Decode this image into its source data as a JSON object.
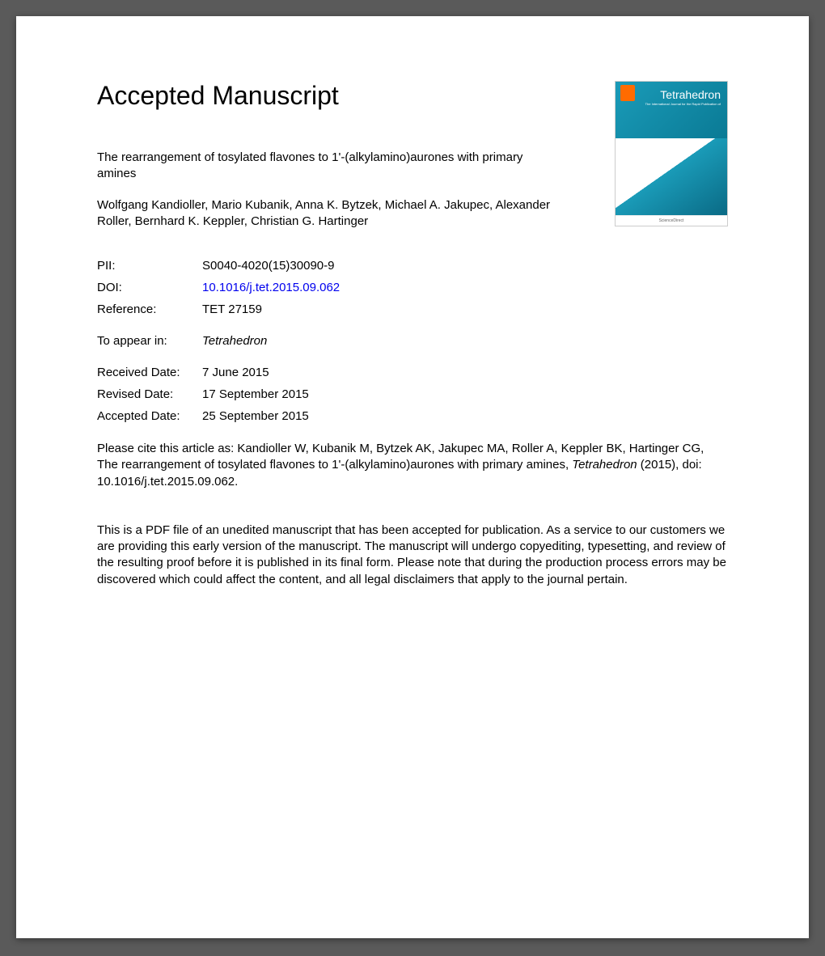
{
  "heading": "Accepted Manuscript",
  "cover": {
    "journal_title": "Tetrahedron",
    "subtitle": "The International Journal for the Rapid Publication of",
    "footer": "ScienceDirect"
  },
  "article_title": "The rearrangement of tosylated flavones to 1'-(alkylamino)aurones with primary amines",
  "authors": "Wolfgang Kandioller, Mario Kubanik, Anna K. Bytzek, Michael A. Jakupec, Alexander Roller, Bernhard K. Keppler, Christian G. Hartinger",
  "meta": {
    "pii": {
      "label": "PII:",
      "value": "S0040-4020(15)30090-9"
    },
    "doi": {
      "label": "DOI:",
      "value": "10.1016/j.tet.2015.09.062"
    },
    "reference": {
      "label": "Reference:",
      "value": "TET 27159"
    },
    "to_appear": {
      "label": "To appear in:",
      "value": "Tetrahedron"
    },
    "received": {
      "label": "Received Date:",
      "value": "7 June 2015"
    },
    "revised": {
      "label": "Revised Date:",
      "value": "17 September 2015"
    },
    "accepted": {
      "label": "Accepted Date:",
      "value": "25 September 2015"
    }
  },
  "citation_prefix": "Please cite this article as: Kandioller W, Kubanik M, Bytzek AK, Jakupec MA, Roller A, Keppler BK, Hartinger CG, The rearrangement of tosylated flavones to 1'-(alkylamino)aurones with primary amines, ",
  "citation_journal": "Tetrahedron",
  "citation_suffix": " (2015), doi: 10.1016/j.tet.2015.09.062.",
  "disclaimer": "This is a PDF file of an unedited manuscript that has been accepted for publication. As a service to our customers we are providing this early version of the manuscript. The manuscript will undergo copyediting, typesetting, and review of the resulting proof before it is published in its final form. Please note that during the production process errors may be discovered which could affect the content, and all legal disclaimers that apply to the journal pertain.",
  "colors": {
    "page_bg": "#ffffff",
    "outer_bg": "#5a5a5a",
    "text": "#000000",
    "link": "#0000ee",
    "cover_teal_light": "#1a9bb8",
    "cover_teal_dark": "#0a7a95",
    "cover_orange": "#ff6b00"
  },
  "typography": {
    "heading_fontsize": 32,
    "body_fontsize": 15,
    "font_family": "Arial"
  }
}
